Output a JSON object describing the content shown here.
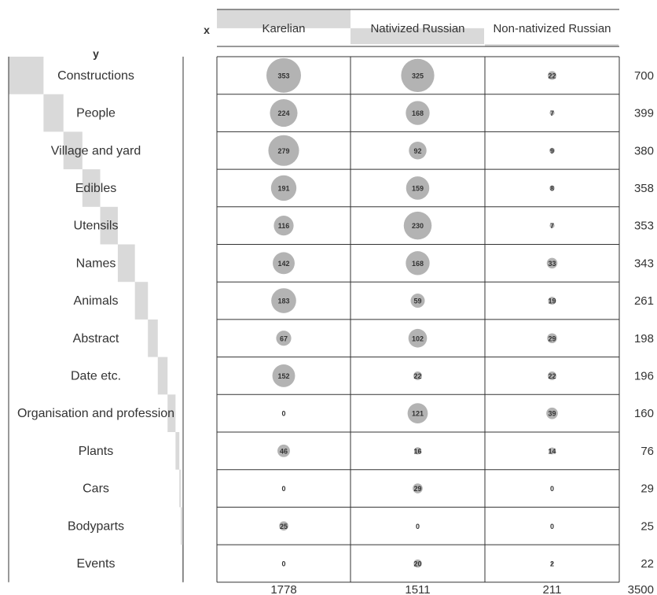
{
  "chart_data": {
    "type": "table",
    "x_axis_name": "x",
    "y_axis_name": "y",
    "columns": [
      "Karelian",
      "Nativized Russian",
      "Non-nativized Russian"
    ],
    "rows": [
      "Constructions",
      "People",
      "Village and yard",
      "Edibles",
      "Utensils",
      "Names",
      "Animals",
      "Abstract",
      "Date etc.",
      "Organisation and profession",
      "Plants",
      "Cars",
      "Bodyparts",
      "Events"
    ],
    "values": [
      [
        353,
        325,
        22
      ],
      [
        224,
        168,
        7
      ],
      [
        279,
        92,
        9
      ],
      [
        191,
        159,
        8
      ],
      [
        116,
        230,
        7
      ],
      [
        142,
        168,
        33
      ],
      [
        183,
        59,
        19
      ],
      [
        67,
        102,
        29
      ],
      [
        152,
        22,
        22
      ],
      [
        0,
        121,
        39
      ],
      [
        46,
        16,
        14
      ],
      [
        0,
        29,
        0
      ],
      [
        25,
        0,
        0
      ],
      [
        0,
        20,
        2
      ]
    ],
    "row_totals": [
      700,
      399,
      380,
      358,
      353,
      343,
      261,
      198,
      196,
      160,
      76,
      29,
      25,
      22
    ],
    "column_totals": [
      1778,
      1511,
      211
    ],
    "grand_total": 3500,
    "colors": {
      "bubble": "#b3b3b3",
      "bar": "#d9d9d9",
      "border": "#333333"
    }
  }
}
